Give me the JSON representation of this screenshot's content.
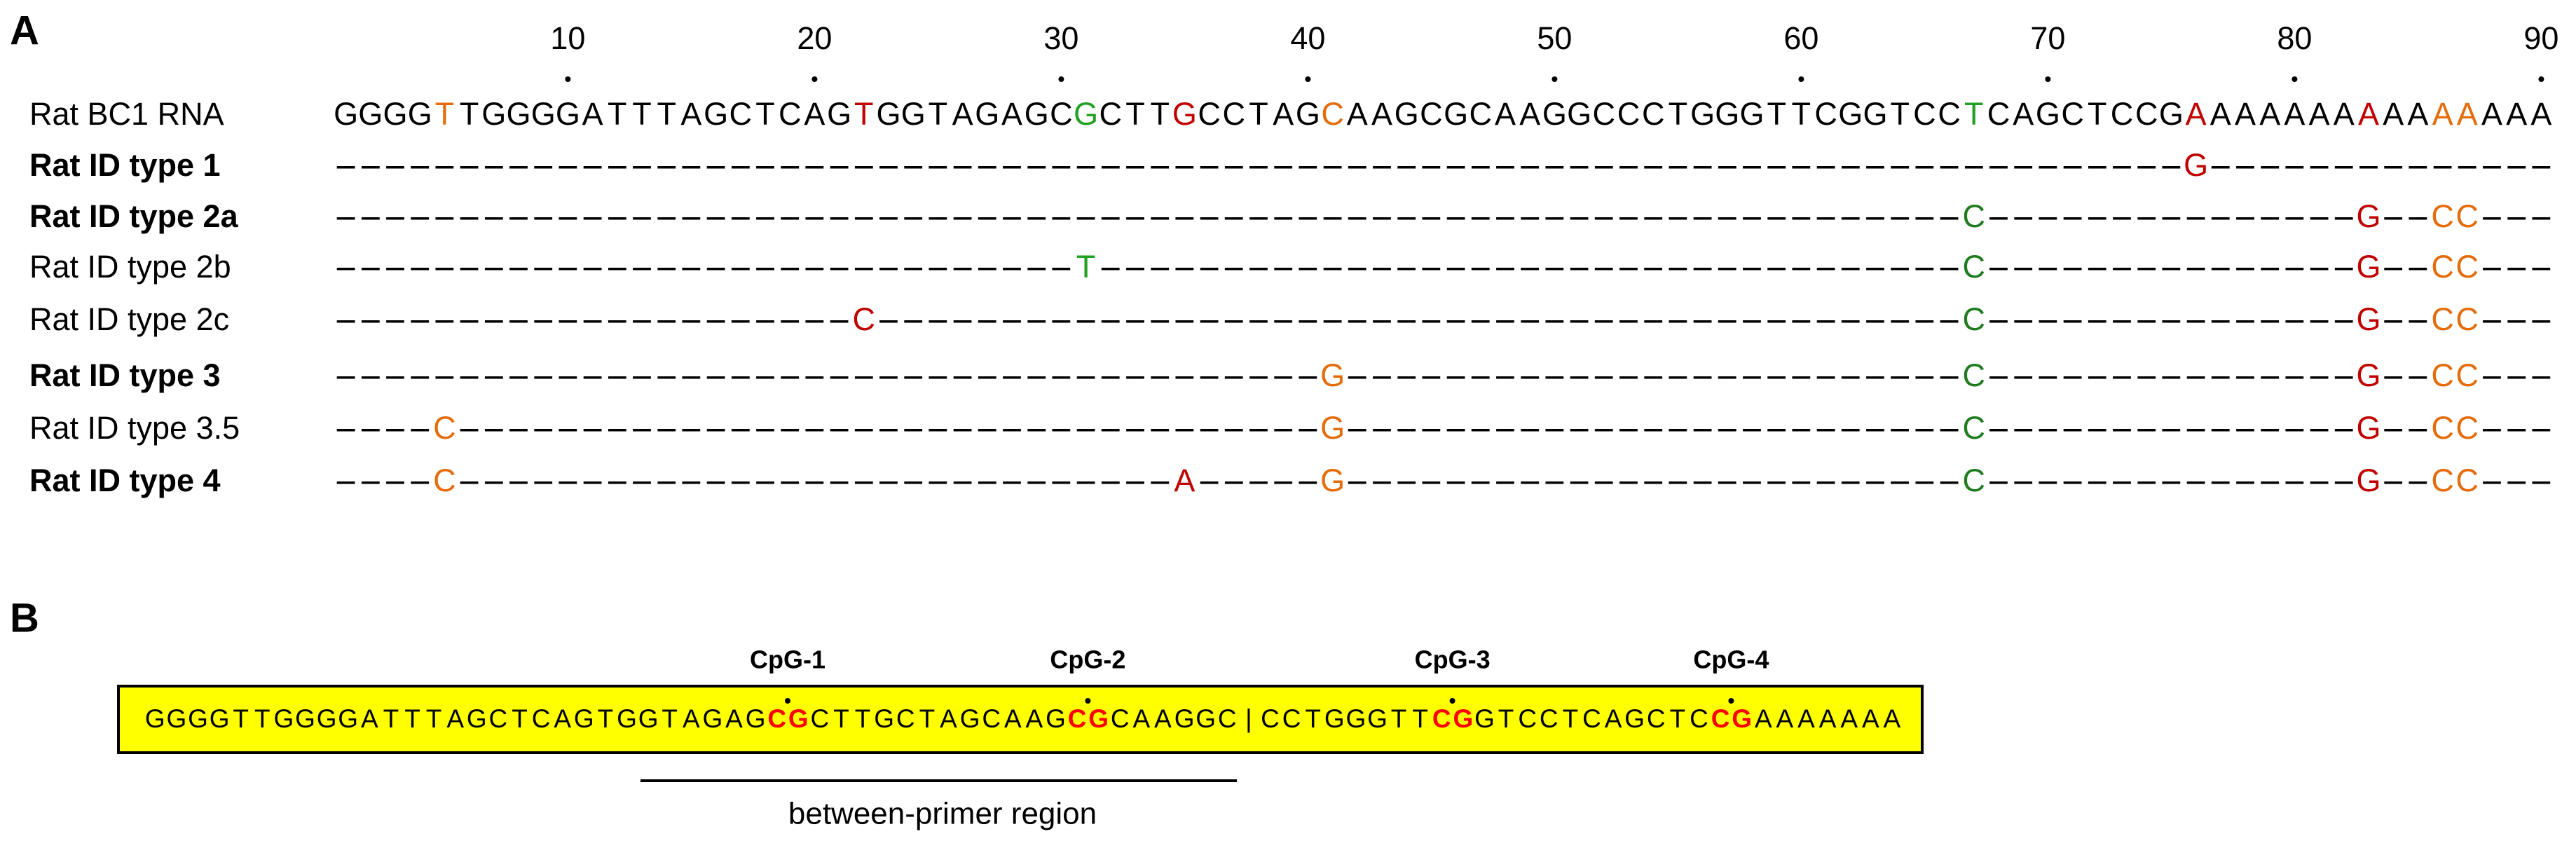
{
  "panel_a": {
    "label": "A",
    "ruler": [
      10,
      20,
      30,
      40,
      50,
      60,
      70,
      80,
      90
    ],
    "rows": [
      {
        "name": "Rat BC1 RNA",
        "bold": false,
        "segments": [
          {
            "text": "GGGG"
          },
          {
            "text": "T",
            "color": "#e46c0a"
          },
          {
            "text": "TGGGGATTTAGCTCAG"
          },
          {
            "text": "T",
            "color": "#c00000"
          },
          {
            "text": "GGTAGAGC"
          },
          {
            "text": "G",
            "color": "#22a022"
          },
          {
            "text": "CTT"
          },
          {
            "text": "G",
            "color": "#c00000"
          },
          {
            "text": "CCTAG"
          },
          {
            "text": "C",
            "color": "#e46c0a"
          },
          {
            "text": "AAGCGCAAGGCCCTGGGTTCGGTCC"
          },
          {
            "text": "T",
            "color": "#22a022"
          },
          {
            "text": "CAGCTCCG"
          },
          {
            "text": "A",
            "color": "#c00000"
          },
          {
            "text": "AAAAAA"
          },
          {
            "text": "A",
            "color": "#c00000"
          },
          {
            "text": "AA"
          },
          {
            "text": "AA",
            "color": "#e46c0a"
          },
          {
            "text": "AAA"
          }
        ]
      },
      {
        "name": "Rat ID type 1",
        "bold": true,
        "segments": [
          {
            "text": "---------------------------------------------------------------------------"
          },
          {
            "text": "G",
            "color": "#c00000"
          },
          {
            "text": "--------------"
          }
        ]
      },
      {
        "name": "Rat ID type 2a",
        "bold": true,
        "segments": [
          {
            "text": "------------------------------------------------------------------"
          },
          {
            "text": "C",
            "color": "#1e7b1e"
          },
          {
            "text": "---------------"
          },
          {
            "text": "G",
            "color": "#c00000"
          },
          {
            "text": "--"
          },
          {
            "text": "CC",
            "color": "#e46c0a"
          },
          {
            "text": "---"
          }
        ]
      },
      {
        "name": "Rat ID type 2b",
        "bold": false,
        "segments": [
          {
            "text": "------------------------------"
          },
          {
            "text": "T",
            "color": "#22a022"
          },
          {
            "text": "-----------------------------------"
          },
          {
            "text": "C",
            "color": "#1e7b1e"
          },
          {
            "text": "---------------"
          },
          {
            "text": "G",
            "color": "#c00000"
          },
          {
            "text": "--"
          },
          {
            "text": "CC",
            "color": "#e46c0a"
          },
          {
            "text": "---"
          }
        ]
      },
      {
        "name": "Rat ID type 2c",
        "bold": false,
        "segments": [
          {
            "text": "---------------------"
          },
          {
            "text": "C",
            "color": "#c00000"
          },
          {
            "text": "--------------------------------------------"
          },
          {
            "text": "C",
            "color": "#1e7b1e"
          },
          {
            "text": "---------------"
          },
          {
            "text": "G",
            "color": "#c00000"
          },
          {
            "text": "--"
          },
          {
            "text": "CC",
            "color": "#e46c0a"
          },
          {
            "text": "---"
          }
        ]
      },
      {
        "name": "Rat ID type 3",
        "bold": true,
        "segments": [
          {
            "text": "----------------------------------------"
          },
          {
            "text": "G",
            "color": "#e46c0a"
          },
          {
            "text": "-------------------------"
          },
          {
            "text": "C",
            "color": "#1e7b1e"
          },
          {
            "text": "---------------"
          },
          {
            "text": "G",
            "color": "#c00000"
          },
          {
            "text": "--"
          },
          {
            "text": "CC",
            "color": "#e46c0a"
          },
          {
            "text": "---"
          }
        ]
      },
      {
        "name": "Rat ID type 3.5",
        "bold": false,
        "segments": [
          {
            "text": "----"
          },
          {
            "text": "C",
            "color": "#e46c0a"
          },
          {
            "text": "-----------------------------------"
          },
          {
            "text": "G",
            "color": "#e46c0a"
          },
          {
            "text": "-------------------------"
          },
          {
            "text": "C",
            "color": "#1e7b1e"
          },
          {
            "text": "---------------"
          },
          {
            "text": "G",
            "color": "#c00000"
          },
          {
            "text": "--"
          },
          {
            "text": "CC",
            "color": "#e46c0a"
          },
          {
            "text": "---"
          }
        ]
      },
      {
        "name": "Rat ID type 4",
        "bold": true,
        "segments": [
          {
            "text": "----"
          },
          {
            "text": "C",
            "color": "#e46c0a"
          },
          {
            "text": "-----------------------------"
          },
          {
            "text": "A",
            "color": "#c00000"
          },
          {
            "text": "-----"
          },
          {
            "text": "G",
            "color": "#e46c0a"
          },
          {
            "text": "-------------------------"
          },
          {
            "text": "C",
            "color": "#1e7b1e"
          },
          {
            "text": "---------------"
          },
          {
            "text": "G",
            "color": "#c00000"
          },
          {
            "text": "--"
          },
          {
            "text": "CC",
            "color": "#e46c0a"
          },
          {
            "text": "---"
          }
        ]
      }
    ]
  },
  "panel_b": {
    "label": "B",
    "cpg_labels": [
      "CpG-1",
      "CpG-2",
      "CpG-3",
      "CpG-4"
    ],
    "segments": [
      {
        "text": "GGGGTTGGGGATTTAGCTCAGTGGTAGAG"
      },
      {
        "text": "CG",
        "color": "#ff0000"
      },
      {
        "text": "CTTGCTAGCAAG"
      },
      {
        "text": "CG",
        "color": "#ff0000"
      },
      {
        "text": "CAAGGC|CCTGGGTT"
      },
      {
        "text": "CG",
        "color": "#ff0000"
      },
      {
        "text": "GTCCTCAGCTC"
      },
      {
        "text": "CG",
        "color": "#ff0000"
      },
      {
        "text": "AAAAAAA"
      }
    ],
    "region_label": "between-primer region"
  }
}
